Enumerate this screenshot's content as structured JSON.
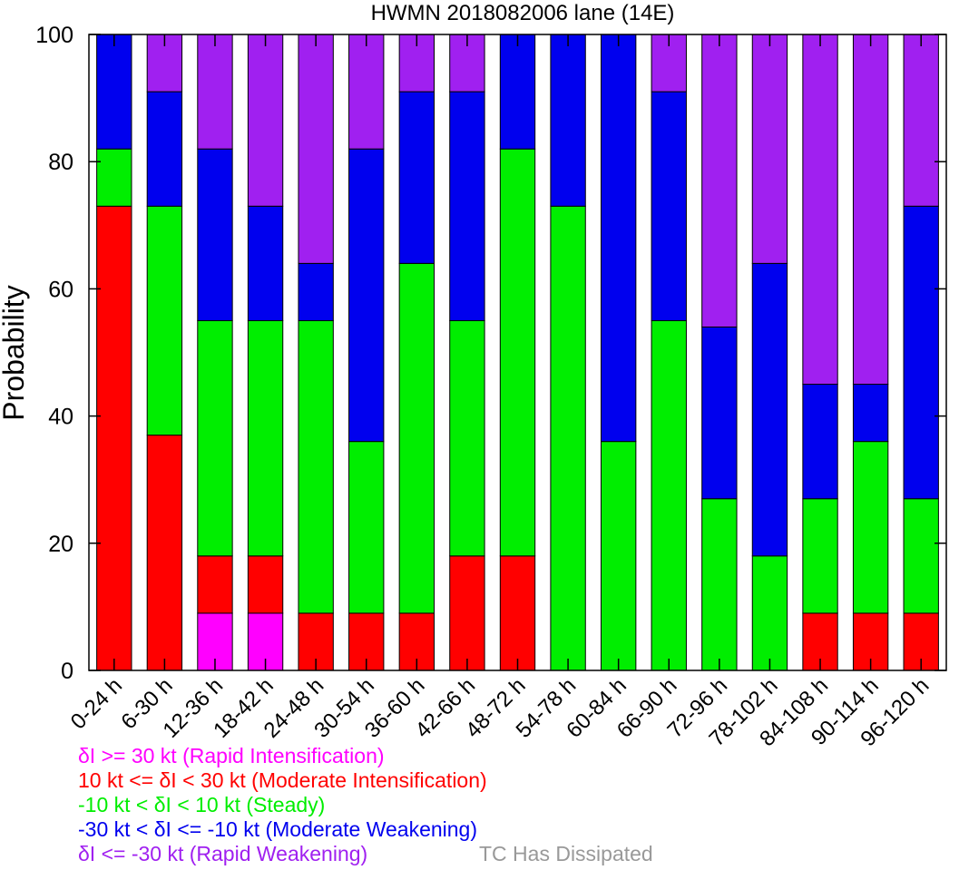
{
  "chart_data": {
    "type": "bar",
    "stacked": true,
    "title": "HWMN 2018082006 lane (14E)",
    "ylabel": "Probability",
    "xlabel": "",
    "ylim": [
      0,
      100
    ],
    "yticks": [
      0,
      20,
      40,
      60,
      80,
      100
    ],
    "categories": [
      "0-24 h",
      "6-30 h",
      "12-36 h",
      "18-42 h",
      "24-48 h",
      "30-54 h",
      "36-60 h",
      "42-66 h",
      "48-72 h",
      "54-78 h",
      "60-84 h",
      "66-90 h",
      "72-96 h",
      "78-102 h",
      "84-108 h",
      "90-114 h",
      "96-120 h"
    ],
    "series": [
      {
        "name": "δI >= 30 kt (Rapid Intensification)",
        "color": "#ff00ff",
        "values": [
          0,
          0,
          9,
          9,
          0,
          0,
          0,
          0,
          0,
          0,
          0,
          0,
          0,
          0,
          0,
          0,
          0
        ]
      },
      {
        "name": "10 kt <= δI < 30 kt (Moderate Intensification)",
        "color": "#ff0000",
        "values": [
          73,
          37,
          9,
          9,
          9,
          9,
          9,
          18,
          18,
          0,
          0,
          0,
          0,
          0,
          9,
          9,
          9
        ]
      },
      {
        "name": "-10 kt < δI < 10 kt (Steady)",
        "color": "#00ee00",
        "values": [
          9,
          36,
          37,
          37,
          46,
          27,
          55,
          37,
          64,
          73,
          36,
          55,
          27,
          18,
          18,
          27,
          18
        ]
      },
      {
        "name": "-30 kt < δI <= -10 kt (Moderate Weakening)",
        "color": "#0000ee",
        "values": [
          18,
          18,
          27,
          18,
          9,
          46,
          27,
          36,
          18,
          27,
          64,
          36,
          27,
          46,
          18,
          9,
          46
        ]
      },
      {
        "name": "δI <= -30 kt (Rapid Weakening)",
        "color": "#a020f0",
        "values": [
          0,
          9,
          18,
          27,
          36,
          18,
          9,
          9,
          0,
          0,
          0,
          9,
          46,
          36,
          55,
          55,
          27
        ]
      }
    ],
    "legend_placement": "bottom",
    "extra_legend": {
      "label": "TC Has Dissipated",
      "color": "#999999"
    },
    "grid": false
  }
}
